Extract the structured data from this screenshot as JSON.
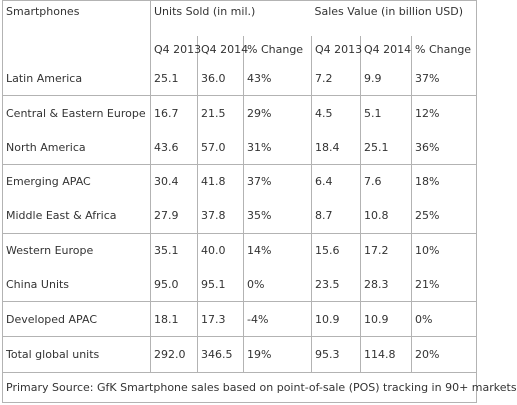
{
  "header": {
    "col0": "Smartphones",
    "units_group": "Units Sold (in mil.)",
    "sales_group": "Sales Value (in billion USD)"
  },
  "subheader": [
    "Q4 2013",
    "Q4 2014",
    "% Change",
    "Q4 2013",
    "Q4 2014",
    "% Change"
  ],
  "rows": [
    {
      "region": "Latin America",
      "u13": "25.1",
      "u14": "36.0",
      "uch": "43%",
      "s13": "7.2",
      "s14": "9.9",
      "sch": "37%"
    },
    {
      "region": "Central & Eastern Europe",
      "u13": "16.7",
      "u14": "21.5",
      "uch": "29%",
      "s13": "4.5",
      "s14": "5.1",
      "sch": "12%"
    },
    {
      "region": "North America",
      "u13": "43.6",
      "u14": "57.0",
      "uch": "31%",
      "s13": "18.4",
      "s14": "25.1",
      "sch": "36%"
    },
    {
      "region": "Emerging APAC",
      "u13": "30.4",
      "u14": "41.8",
      "uch": "37%",
      "s13": "6.4",
      "s14": "7.6",
      "sch": "18%"
    },
    {
      "region": "Middle East & Africa",
      "u13": "27.9",
      "u14": "37.8",
      "uch": "35%",
      "s13": "8.7",
      "s14": "10.8",
      "sch": "25%"
    },
    {
      "region": "Western Europe",
      "u13": "35.1",
      "u14": "40.0",
      "uch": "14%",
      "s13": "15.6",
      "s14": "17.2",
      "sch": "10%"
    },
    {
      "region": "China Units",
      "u13": "95.0",
      "u14": "95.1",
      "uch": "0%",
      "s13": "23.5",
      "s14": "28.3",
      "sch": "21%"
    },
    {
      "region": "Developed APAC",
      "u13": "18.1",
      "u14": "17.3",
      "uch": "-4%",
      "s13": "10.9",
      "s14": "10.9",
      "sch": "0%"
    },
    {
      "region": "Total global units",
      "u13": "292.0",
      "u14": "346.5",
      "uch": "19%",
      "s13": "95.3",
      "s14": "114.8",
      "sch": "20%"
    }
  ],
  "footer": "Primary Source: GfK Smartphone sales based on point-of-sale (POS) tracking in 90+ markets"
}
